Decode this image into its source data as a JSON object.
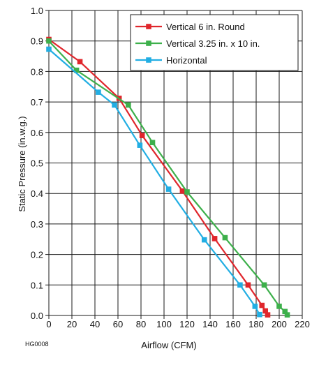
{
  "chart_data": {
    "type": "line",
    "xlabel": "Airflow (CFM)",
    "ylabel": "Static Pressure (in.w.g.)",
    "xlim": [
      0,
      220
    ],
    "ylim": [
      0,
      1.0
    ],
    "x_ticks": [
      "0",
      "20",
      "40",
      "60",
      "80",
      "100",
      "120",
      "140",
      "160",
      "180",
      "200",
      "220"
    ],
    "y_ticks": [
      "0.0",
      "0.1",
      "0.2",
      "0.3",
      "0.4",
      "0.5",
      "0.6",
      "0.7",
      "0.8",
      "0.9",
      "1.0"
    ],
    "grid": true,
    "legend_position": "top-right",
    "series": [
      {
        "name": "Vertical 6 in. Round",
        "color": "#e0262c",
        "points": [
          [
            0,
            0.905
          ],
          [
            27,
            0.832
          ],
          [
            61,
            0.712
          ],
          [
            81,
            0.59
          ],
          [
            116,
            0.408
          ],
          [
            144,
            0.252
          ],
          [
            173,
            0.1
          ],
          [
            185,
            0.033
          ],
          [
            188,
            0.015
          ],
          [
            190,
            0.002
          ]
        ]
      },
      {
        "name": "Vertical 3.25 in. x 10 in.",
        "color": "#3db04b",
        "points": [
          [
            0,
            0.9
          ],
          [
            24,
            0.804
          ],
          [
            69,
            0.69
          ],
          [
            90,
            0.567
          ],
          [
            120,
            0.405
          ],
          [
            153,
            0.255
          ],
          [
            187,
            0.1
          ],
          [
            200,
            0.03
          ],
          [
            205,
            0.013
          ],
          [
            207,
            0.002
          ]
        ]
      },
      {
        "name": "Horizontal",
        "color": "#22aee3",
        "points": [
          [
            0,
            0.873
          ],
          [
            43,
            0.732
          ],
          [
            57,
            0.69
          ],
          [
            79,
            0.558
          ],
          [
            104,
            0.414
          ],
          [
            135,
            0.248
          ],
          [
            166,
            0.1
          ],
          [
            179,
            0.03
          ],
          [
            183,
            0.003
          ]
        ]
      }
    ]
  },
  "footnote_code": "HG0008"
}
